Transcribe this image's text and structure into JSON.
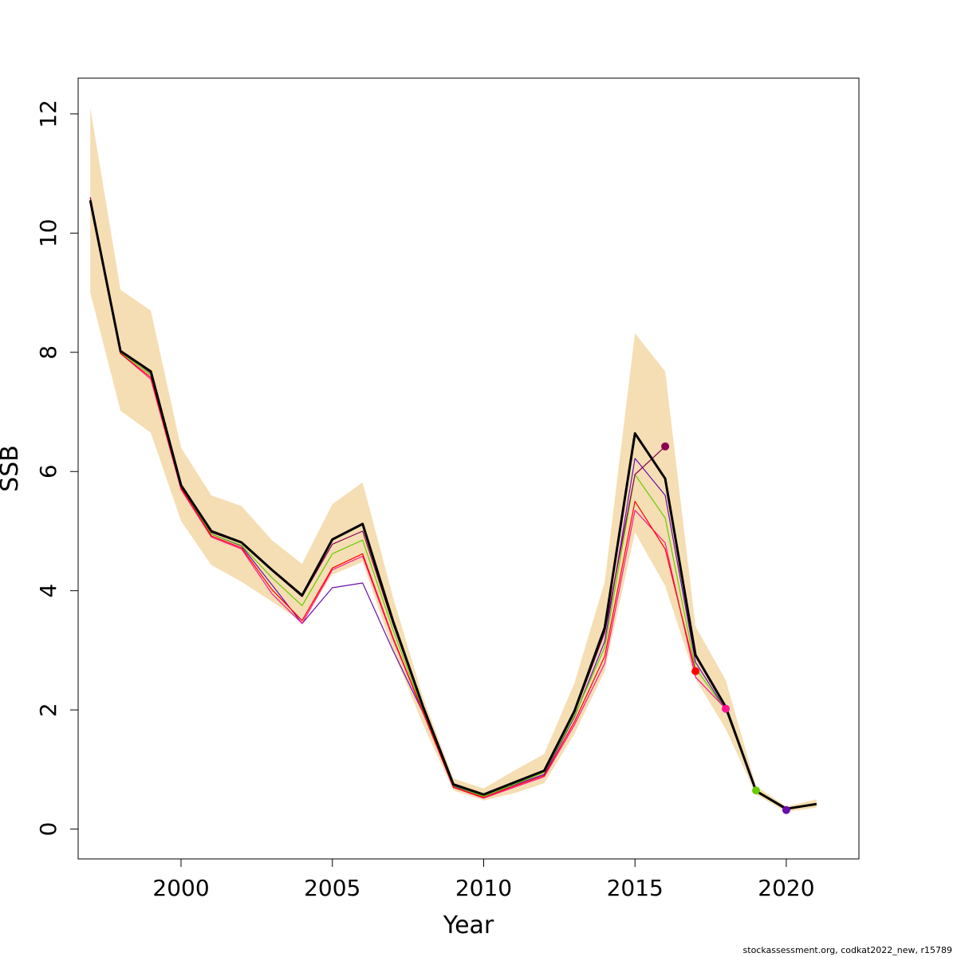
{
  "chart_data": {
    "type": "line",
    "title": "",
    "xlabel": "Year",
    "ylabel": "SSB",
    "xlim": [
      1996.6,
      2022.4
    ],
    "ylim": [
      -0.5,
      12.6
    ],
    "x_ticks": [
      2000,
      2005,
      2010,
      2015,
      2020
    ],
    "y_ticks": [
      0,
      2,
      4,
      6,
      8,
      10,
      12
    ],
    "grid": false,
    "legend": "none",
    "band": {
      "color": "#F5DEB3",
      "years": [
        1997,
        1998,
        1999,
        2000,
        2001,
        2002,
        2003,
        2004,
        2005,
        2006,
        2007,
        2008,
        2009,
        2010,
        2011,
        2012,
        2013,
        2014,
        2015,
        2016,
        2017,
        2018,
        2019,
        2020,
        2021
      ],
      "upper": [
        12.1,
        9.05,
        8.7,
        6.4,
        5.6,
        5.42,
        4.85,
        4.45,
        5.45,
        5.82,
        3.9,
        2.2,
        0.85,
        0.68,
        0.98,
        1.26,
        2.45,
        4.15,
        8.32,
        7.68,
        3.4,
        2.5,
        0.72,
        0.38,
        0.5
      ],
      "lower": [
        9.0,
        7.02,
        6.65,
        5.17,
        4.43,
        4.15,
        3.82,
        3.47,
        4.27,
        4.48,
        3.0,
        1.75,
        0.65,
        0.48,
        0.6,
        0.77,
        1.6,
        2.65,
        4.98,
        4.08,
        2.52,
        1.68,
        0.58,
        0.29,
        0.36
      ]
    },
    "series": [
      {
        "color": "#000000",
        "width": 3,
        "x": [
          1997,
          1998,
          1999,
          2000,
          2001,
          2002,
          2003,
          2004,
          2005,
          2006,
          2007,
          2008,
          2009,
          2010,
          2011,
          2012,
          2013,
          2014,
          2015,
          2016,
          2017,
          2018,
          2019,
          2020,
          2021
        ],
        "y": [
          10.55,
          8.02,
          7.68,
          5.77,
          5.0,
          4.81,
          4.35,
          3.92,
          4.86,
          5.12,
          3.5,
          2.05,
          0.75,
          0.58,
          0.78,
          0.98,
          1.98,
          3.38,
          6.64,
          5.88,
          2.92,
          2.05,
          0.64,
          0.34,
          0.42
        ]
      },
      {
        "color": "#6A0DAD",
        "width": 1.2,
        "x": [
          1997,
          1998,
          1999,
          2000,
          2001,
          2002,
          2003,
          2004,
          2005,
          2006,
          2007,
          2008,
          2009,
          2010,
          2011,
          2012,
          2013,
          2014,
          2015,
          2016,
          2017,
          2018,
          2019,
          2020
        ],
        "y": [
          10.6,
          8.0,
          7.62,
          5.74,
          4.95,
          4.75,
          4.1,
          3.45,
          4.05,
          4.13,
          3.0,
          1.95,
          0.72,
          0.55,
          0.74,
          0.92,
          1.88,
          3.15,
          6.22,
          5.6,
          2.8,
          2.0,
          0.64,
          0.32
        ]
      },
      {
        "color": "#66CC00",
        "width": 1.2,
        "x": [
          1997,
          1998,
          1999,
          2000,
          2001,
          2002,
          2003,
          2004,
          2005,
          2006,
          2007,
          2008,
          2009,
          2010,
          2011,
          2012,
          2013,
          2014,
          2015,
          2016,
          2017,
          2018,
          2019
        ],
        "y": [
          10.55,
          8.0,
          7.62,
          5.75,
          4.95,
          4.76,
          4.22,
          3.75,
          4.62,
          4.85,
          3.35,
          1.98,
          0.73,
          0.55,
          0.75,
          0.95,
          1.9,
          3.05,
          5.95,
          5.22,
          2.7,
          2.0,
          0.65
        ]
      },
      {
        "color": "#FF1493",
        "width": 1.2,
        "x": [
          1997,
          1998,
          1999,
          2000,
          2001,
          2002,
          2003,
          2004,
          2005,
          2006,
          2007,
          2008,
          2009,
          2010,
          2011,
          2012,
          2013,
          2014,
          2015,
          2016,
          2017,
          2018
        ],
        "y": [
          10.5,
          7.98,
          7.55,
          5.7,
          4.9,
          4.7,
          3.95,
          3.45,
          4.35,
          4.58,
          3.2,
          1.95,
          0.7,
          0.52,
          0.7,
          0.88,
          1.75,
          2.78,
          5.35,
          4.8,
          2.55,
          2.02
        ]
      },
      {
        "color": "#FF0000",
        "width": 1.2,
        "x": [
          1997,
          1998,
          1999,
          2000,
          2001,
          2002,
          2003,
          2004,
          2005,
          2006,
          2007,
          2008,
          2009,
          2010,
          2011,
          2012,
          2013,
          2014,
          2015,
          2016,
          2017
        ],
        "y": [
          10.52,
          7.98,
          7.58,
          5.72,
          4.92,
          4.72,
          4.02,
          3.5,
          4.38,
          4.62,
          3.22,
          1.96,
          0.7,
          0.53,
          0.72,
          0.9,
          1.8,
          2.9,
          5.5,
          4.7,
          2.65
        ]
      },
      {
        "color": "#8B0050",
        "width": 1.2,
        "x": [
          1997,
          1998,
          1999,
          2000,
          2001,
          2002,
          2003,
          2004,
          2005,
          2006,
          2007,
          2008,
          2009,
          2010,
          2011,
          2012,
          2013,
          2014,
          2015,
          2016
        ],
        "y": [
          10.6,
          8.03,
          7.65,
          5.76,
          4.98,
          4.8,
          4.34,
          3.9,
          4.78,
          5.0,
          3.45,
          2.02,
          0.74,
          0.57,
          0.77,
          0.97,
          1.95,
          3.3,
          5.95,
          6.42
        ]
      }
    ],
    "end_points": [
      {
        "x": 2016,
        "y": 6.42,
        "color": "#8B0050"
      },
      {
        "x": 2017,
        "y": 2.65,
        "color": "#FF0000"
      },
      {
        "x": 2018,
        "y": 2.02,
        "color": "#FF1493"
      },
      {
        "x": 2019,
        "y": 0.65,
        "color": "#66CC00"
      },
      {
        "x": 2020,
        "y": 0.32,
        "color": "#6A0DAD"
      }
    ]
  },
  "footer": "stockassessment.org, codkat2022_new, r15789"
}
